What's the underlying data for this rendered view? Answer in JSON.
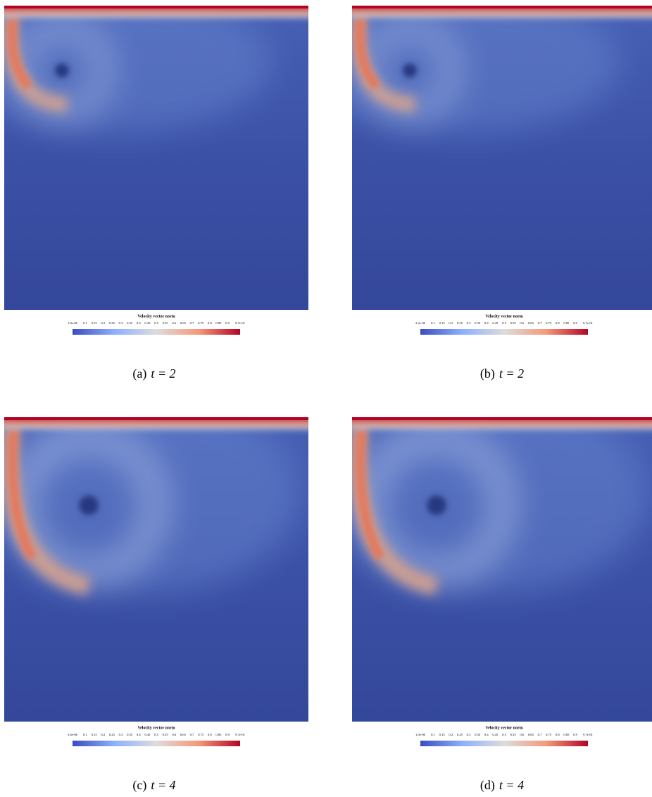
{
  "panels": [
    {
      "colorbar": {
        "title": "Velocity vector norm",
        "ticks": [
          "1.0e-06",
          "0.1",
          "0.15",
          "0.2",
          "0.25",
          "0.3",
          "0.35",
          "0.4",
          "0.45",
          "0.5",
          "0.55",
          "0.6",
          "0.65",
          "0.7",
          "0.75",
          "0.8",
          "0.85",
          "0.9",
          "9.7e-01"
        ]
      },
      "caption": {
        "label": "(a)",
        "math": "t = 2"
      }
    },
    {
      "colorbar": {
        "title": "Velocity vector norm",
        "ticks": [
          "2.2e-06",
          "0.1",
          "0.15",
          "0.2",
          "0.25",
          "0.3",
          "0.35",
          "0.4",
          "0.45",
          "0.5",
          "0.55",
          "0.6",
          "0.65",
          "0.7",
          "0.75",
          "0.8",
          "0.85",
          "0.9",
          "9.7e-01"
        ]
      },
      "caption": {
        "label": "(b)",
        "math": "t = 2"
      }
    },
    {
      "colorbar": {
        "title": "Velocity vector norm",
        "ticks": [
          "3.6e-06",
          "0.1",
          "0.15",
          "0.2",
          "0.25",
          "0.3",
          "0.35",
          "0.4",
          "0.45",
          "0.5",
          "0.55",
          "0.6",
          "0.65",
          "0.7",
          "0.75",
          "0.8",
          "0.85",
          "0.9",
          "9.7e-01"
        ]
      },
      "caption": {
        "label": "(c)",
        "math": "t = 4"
      }
    },
    {
      "colorbar": {
        "title": "Velocity vector norm",
        "ticks": [
          "1.0e-06",
          "0.1",
          "0.15",
          "0.2",
          "0.25",
          "0.3",
          "0.35",
          "0.4",
          "0.45",
          "0.5",
          "0.55",
          "0.6",
          "0.65",
          "0.7",
          "0.75",
          "0.8",
          "0.85",
          "0.9",
          "9.7e-01"
        ]
      },
      "caption": {
        "label": "(d)",
        "math": "t = 4"
      }
    }
  ]
}
